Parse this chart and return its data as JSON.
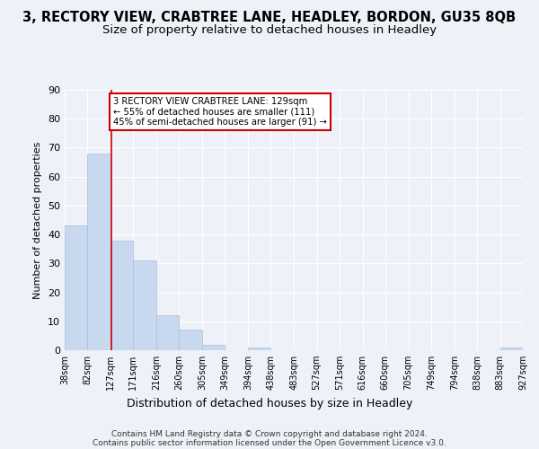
{
  "title": "3, RECTORY VIEW, CRABTREE LANE, HEADLEY, BORDON, GU35 8QB",
  "subtitle": "Size of property relative to detached houses in Headley",
  "xlabel": "Distribution of detached houses by size in Headley",
  "ylabel": "Number of detached properties",
  "bar_left_edges": [
    38,
    82,
    127,
    171,
    216,
    260,
    305,
    349,
    394,
    438,
    483,
    527,
    571,
    616,
    660,
    705,
    749,
    794,
    838,
    883
  ],
  "bar_widths": [
    44,
    45,
    44,
    45,
    44,
    45,
    44,
    45,
    44,
    45,
    44,
    44,
    45,
    44,
    45,
    44,
    45,
    44,
    45,
    44
  ],
  "bar_heights": [
    43,
    68,
    38,
    31,
    12,
    7,
    2,
    0,
    1,
    0,
    0,
    0,
    0,
    0,
    0,
    0,
    0,
    0,
    0,
    1
  ],
  "bar_color": "#c8d8ee",
  "bar_edge_color": "#a8bedd",
  "tick_labels": [
    "38sqm",
    "82sqm",
    "127sqm",
    "171sqm",
    "216sqm",
    "260sqm",
    "305sqm",
    "349sqm",
    "394sqm",
    "438sqm",
    "483sqm",
    "527sqm",
    "571sqm",
    "616sqm",
    "660sqm",
    "705sqm",
    "749sqm",
    "794sqm",
    "838sqm",
    "883sqm",
    "927sqm"
  ],
  "vline_x": 129,
  "vline_color": "#cc0000",
  "ylim": [
    0,
    90
  ],
  "yticks": [
    0,
    10,
    20,
    30,
    40,
    50,
    60,
    70,
    80,
    90
  ],
  "annotation_lines": [
    "3 RECTORY VIEW CRABTREE LANE: 129sqm",
    "← 55% of detached houses are smaller (111)",
    "45% of semi-detached houses are larger (91) →"
  ],
  "footer_line1": "Contains HM Land Registry data © Crown copyright and database right 2024.",
  "footer_line2": "Contains public sector information licensed under the Open Government Licence v3.0.",
  "background_color": "#eef2f8",
  "grid_color": "#ffffff",
  "title_fontsize": 10.5,
  "subtitle_fontsize": 9.5,
  "bar_label_fontsize": 7,
  "ylabel_fontsize": 8,
  "xlabel_fontsize": 9,
  "footer_fontsize": 6.5
}
